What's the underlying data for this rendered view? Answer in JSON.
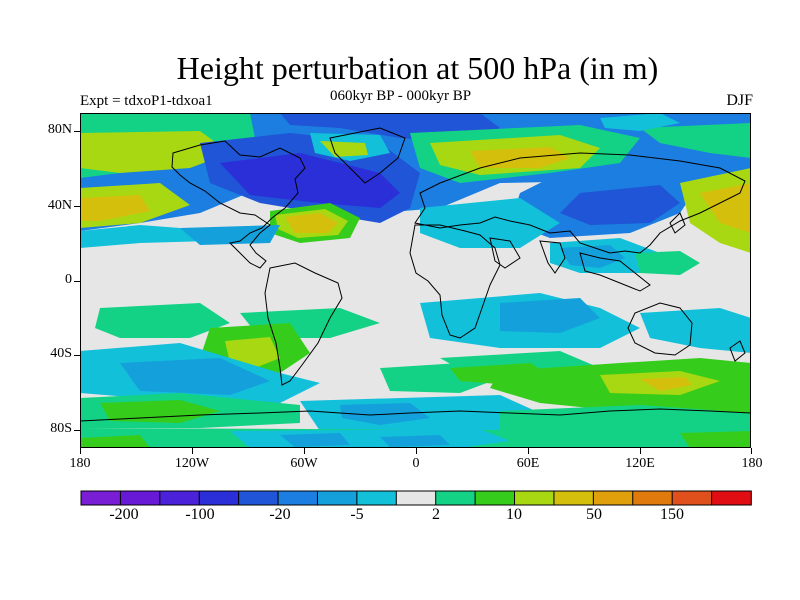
{
  "title": "Height perturbation at 500 hPa (in m)",
  "subtitle": "060kyr BP - 000kyr BP",
  "expt_label": "Expt = tdxoP1-tdxoa1",
  "season": "DJF",
  "lat_labels": [
    "80N",
    "40N",
    "0",
    "40S",
    "80S"
  ],
  "lon_labels": [
    "180",
    "120W",
    "60W",
    "0",
    "60E",
    "120E",
    "180"
  ],
  "colorbar": {
    "colors": [
      "#7a1ed6",
      "#6719d6",
      "#4b22da",
      "#2a2fd8",
      "#1f55d6",
      "#1b7ee0",
      "#14a0da",
      "#12c0da",
      "#e6e6e6",
      "#14d285",
      "#36cc1c",
      "#a8d812",
      "#d4c00c",
      "#e0a00c",
      "#e07a0c",
      "#e0501c",
      "#e00e12"
    ],
    "labels": [
      "-200",
      "-100",
      "-20",
      "-5",
      "2",
      "10",
      "50",
      "150"
    ]
  },
  "chart_data": {
    "type": "heatmap",
    "title": "Height perturbation at 500 hPa (in m)",
    "subtitle": "060kyr BP - 000kyr BP",
    "x_range": [
      -180,
      180
    ],
    "y_range": [
      -90,
      90
    ],
    "contour_levels": [
      -200,
      -150,
      -100,
      -50,
      -20,
      -10,
      -5,
      -2,
      2,
      5,
      10,
      20,
      50,
      100,
      150,
      200
    ]
  }
}
